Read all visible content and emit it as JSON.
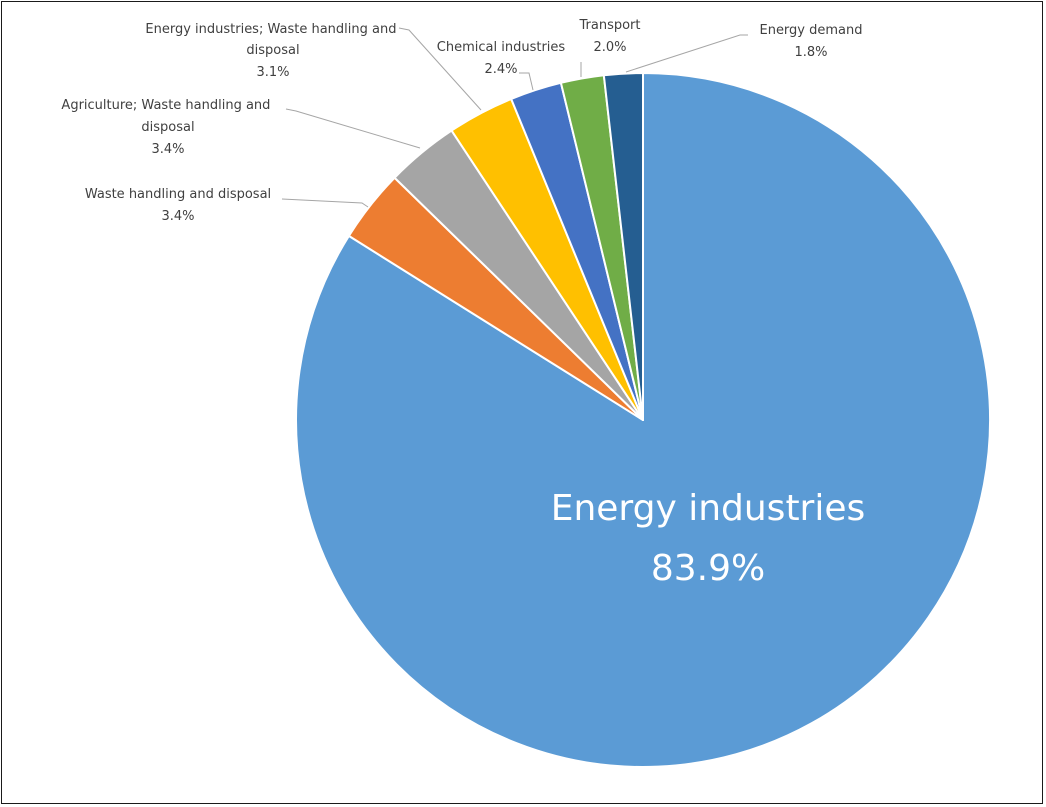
{
  "chart_data": {
    "type": "pie",
    "title": "",
    "start_angle_deg": 0,
    "direction": "clockwise",
    "slices": [
      {
        "label": "Energy industries",
        "value": 83.9,
        "display": "83.9%",
        "color": "#5b9bd5"
      },
      {
        "label": "Waste handling and disposal",
        "value": 3.4,
        "display": "3.4%",
        "color": "#ed7d31"
      },
      {
        "label": "Agriculture; Waste handling and disposal",
        "value": 3.4,
        "display": "3.4%",
        "color": "#a5a5a5"
      },
      {
        "label": "Energy industries; Waste handling and disposal",
        "value": 3.1,
        "display": "3.1%",
        "color": "#ffc000"
      },
      {
        "label": "Chemical industries",
        "value": 2.4,
        "display": "2.4%",
        "color": "#4472c4"
      },
      {
        "label": "Transport",
        "value": 2.0,
        "display": "2.0%",
        "color": "#70ad47"
      },
      {
        "label": "Energy demand",
        "value": 1.8,
        "display": "1.8%",
        "color": "#255e91"
      }
    ]
  }
}
